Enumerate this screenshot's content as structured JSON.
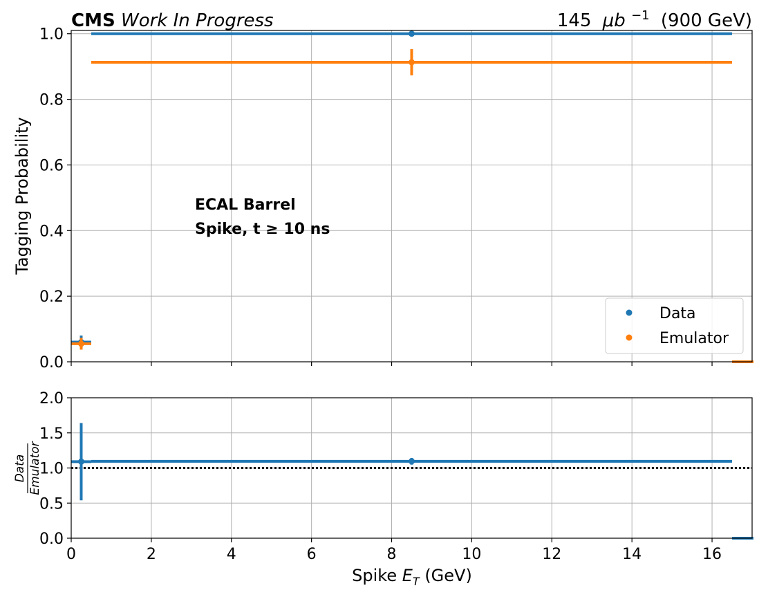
{
  "header": {
    "experiment": "CMS",
    "status": "Work In Progress",
    "lumi_value": "145",
    "lumi_unit": "μb",
    "lumi_exp": "−1",
    "energy": "(900 GeV)"
  },
  "annotation": {
    "line1": "ECAL Barrel",
    "line2": "Spike, t ≥ 10 ns"
  },
  "colors": {
    "data": "#1f77b4",
    "emulator": "#ff7f0e"
  },
  "chart_data": [
    {
      "type": "scatter",
      "panel": "main",
      "title": "",
      "xlabel": "",
      "ylabel": "Tagging Probability",
      "xlim": [
        0,
        17
      ],
      "ylim": [
        0,
        1.01
      ],
      "xticks": [
        "0",
        "2",
        "4",
        "6",
        "8",
        "10",
        "12",
        "14",
        "16"
      ],
      "yticks": [
        "0.0",
        "0.2",
        "0.4",
        "0.6",
        "0.8",
        "1.0"
      ],
      "grid": true,
      "legend_position": "lower-right",
      "series": [
        {
          "name": "Data",
          "points": [
            {
              "x": 0.25,
              "xerr": 0.25,
              "y": 0.06,
              "yerr": 0.02
            },
            {
              "x": 8.5,
              "xerr": 8.0,
              "y": 1.0,
              "yerr": 0.0
            },
            {
              "x": 17.25,
              "xerr": 0.75,
              "y": 0.0,
              "yerr": 0.0
            }
          ]
        },
        {
          "name": "Emulator",
          "points": [
            {
              "x": 0.25,
              "xerr": 0.25,
              "y": 0.055,
              "yerr": 0.018
            },
            {
              "x": 8.5,
              "xerr": 8.0,
              "y": 0.913,
              "yerr": 0.04
            },
            {
              "x": 17.25,
              "xerr": 0.75,
              "y": 0.0,
              "yerr": 0.0
            }
          ]
        }
      ]
    },
    {
      "type": "scatter",
      "panel": "ratio",
      "title": "",
      "xlabel": "Spike E_T (GeV)",
      "ylabel": "Data / Emulator",
      "ylabel_numerator": "Data",
      "ylabel_denominator": "Emulator",
      "xlim": [
        0,
        17
      ],
      "ylim": [
        0,
        2.0
      ],
      "xticks": [
        "0",
        "2",
        "4",
        "6",
        "8",
        "10",
        "12",
        "14",
        "16"
      ],
      "yticks": [
        "0.0",
        "0.5",
        "1.0",
        "1.5",
        "2.0"
      ],
      "grid": true,
      "reference_line": 1.0,
      "series": [
        {
          "name": "Data/Emulator",
          "points": [
            {
              "x": 0.25,
              "xerr": 0.25,
              "y": 1.09,
              "yerr": 0.55
            },
            {
              "x": 8.5,
              "xerr": 8.0,
              "y": 1.095,
              "yerr": 0.048
            },
            {
              "x": 17.25,
              "xerr": 0.75,
              "y": 0.0,
              "yerr": 0.0
            }
          ]
        }
      ]
    }
  ]
}
